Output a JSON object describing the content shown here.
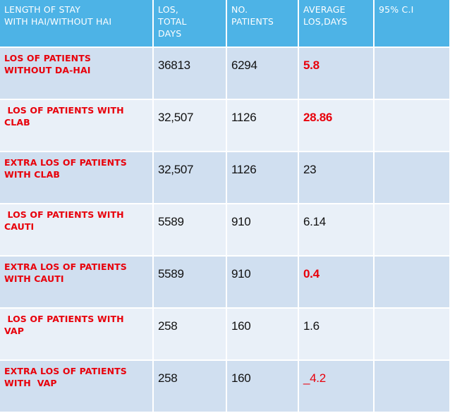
{
  "colors": {
    "header_bg": "#4db3e6",
    "row_odd_bg": "#d0dff0",
    "row_even_bg": "#e9f0f8",
    "label_red": "#e8000b"
  },
  "header": {
    "col1": "LENGTH  OF STAY\nWITH HAI/WITHOUT  HAI",
    "col2": "LOS,\nTOTAL\nDAYS",
    "col3": "NO.\nPATIENTS",
    "col4": "AVERAGE\nLOS,DAYS",
    "col5": "95% C.I"
  },
  "rows": [
    {
      "label": "LOS OF PATIENTS\nWITHOUT DA-HAI",
      "los": "36813",
      "patients": "6294",
      "average": "5.8",
      "ci": ""
    },
    {
      "label": " LOS OF PATIENTS WITH\nCLAB",
      "los": "32,507",
      "patients": "1126",
      "average": "28.86",
      "ci": ""
    },
    {
      "label": "EXTRA LOS OF PATIENTS\nWITH CLAB",
      "los": "32,507",
      "patients": "1126",
      "average": "23",
      "ci": ""
    },
    {
      "label": " LOS OF PATIENTS WITH\nCAUTI",
      "los": "5589",
      "patients": "910",
      "average": "6.14",
      "ci": ""
    },
    {
      "label": "EXTRA LOS OF PATIENTS\nWITH CAUTI",
      "los": "5589",
      "patients": "910",
      "average": "0.4",
      "ci": ""
    },
    {
      "label": " LOS OF PATIENTS WITH\nVAP",
      "los": "258",
      "patients": "160",
      "average": "1.6",
      "ci": ""
    },
    {
      "label": "EXTRA LOS OF PATIENTS\nWITH  VAP",
      "los": "258",
      "patients": "160",
      "average": "_4.2",
      "ci": ""
    }
  ]
}
